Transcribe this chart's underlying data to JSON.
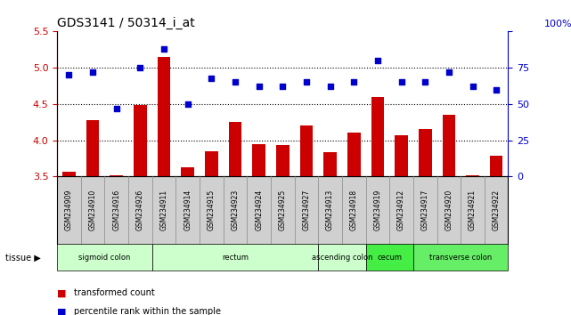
{
  "title": "GDS3141 / 50314_i_at",
  "samples": [
    "GSM234909",
    "GSM234910",
    "GSM234916",
    "GSM234926",
    "GSM234911",
    "GSM234914",
    "GSM234915",
    "GSM234923",
    "GSM234924",
    "GSM234925",
    "GSM234927",
    "GSM234913",
    "GSM234918",
    "GSM234919",
    "GSM234912",
    "GSM234917",
    "GSM234920",
    "GSM234921",
    "GSM234922"
  ],
  "bar_values": [
    3.56,
    4.28,
    3.52,
    4.48,
    5.15,
    3.63,
    3.85,
    4.25,
    3.95,
    3.93,
    4.2,
    3.83,
    4.1,
    4.6,
    4.07,
    4.15,
    4.35,
    3.52,
    3.78
  ],
  "dot_values": [
    70,
    72,
    47,
    75,
    88,
    50,
    68,
    65,
    62,
    62,
    65,
    62,
    65,
    80,
    65,
    65,
    72,
    62,
    60
  ],
  "bar_color": "#cc0000",
  "dot_color": "#0000cc",
  "ylim_left": [
    3.5,
    5.5
  ],
  "ylim_right": [
    0,
    100
  ],
  "yticks_left": [
    3.5,
    4.0,
    4.5,
    5.0,
    5.5
  ],
  "yticks_right": [
    0,
    25,
    50,
    75,
    100
  ],
  "hlines": [
    4.0,
    4.5,
    5.0
  ],
  "tissue_groups": [
    {
      "label": "sigmoid colon",
      "start": 0,
      "end": 3,
      "color": "#ccffcc"
    },
    {
      "label": "rectum",
      "start": 4,
      "end": 10,
      "color": "#ccffcc"
    },
    {
      "label": "ascending colon",
      "start": 11,
      "end": 12,
      "color": "#ccffcc"
    },
    {
      "label": "cecum",
      "start": 13,
      "end": 14,
      "color": "#44ee44"
    },
    {
      "label": "transverse colon",
      "start": 15,
      "end": 18,
      "color": "#66ee66"
    }
  ],
  "tissue_label": "tissue",
  "legend_bar": "transformed count",
  "legend_dot": "percentile rank within the sample",
  "right_axis_label": "100%",
  "background_color": "#ffffff",
  "plot_bg": "#ffffff",
  "tick_bg": "#d0d0d0"
}
